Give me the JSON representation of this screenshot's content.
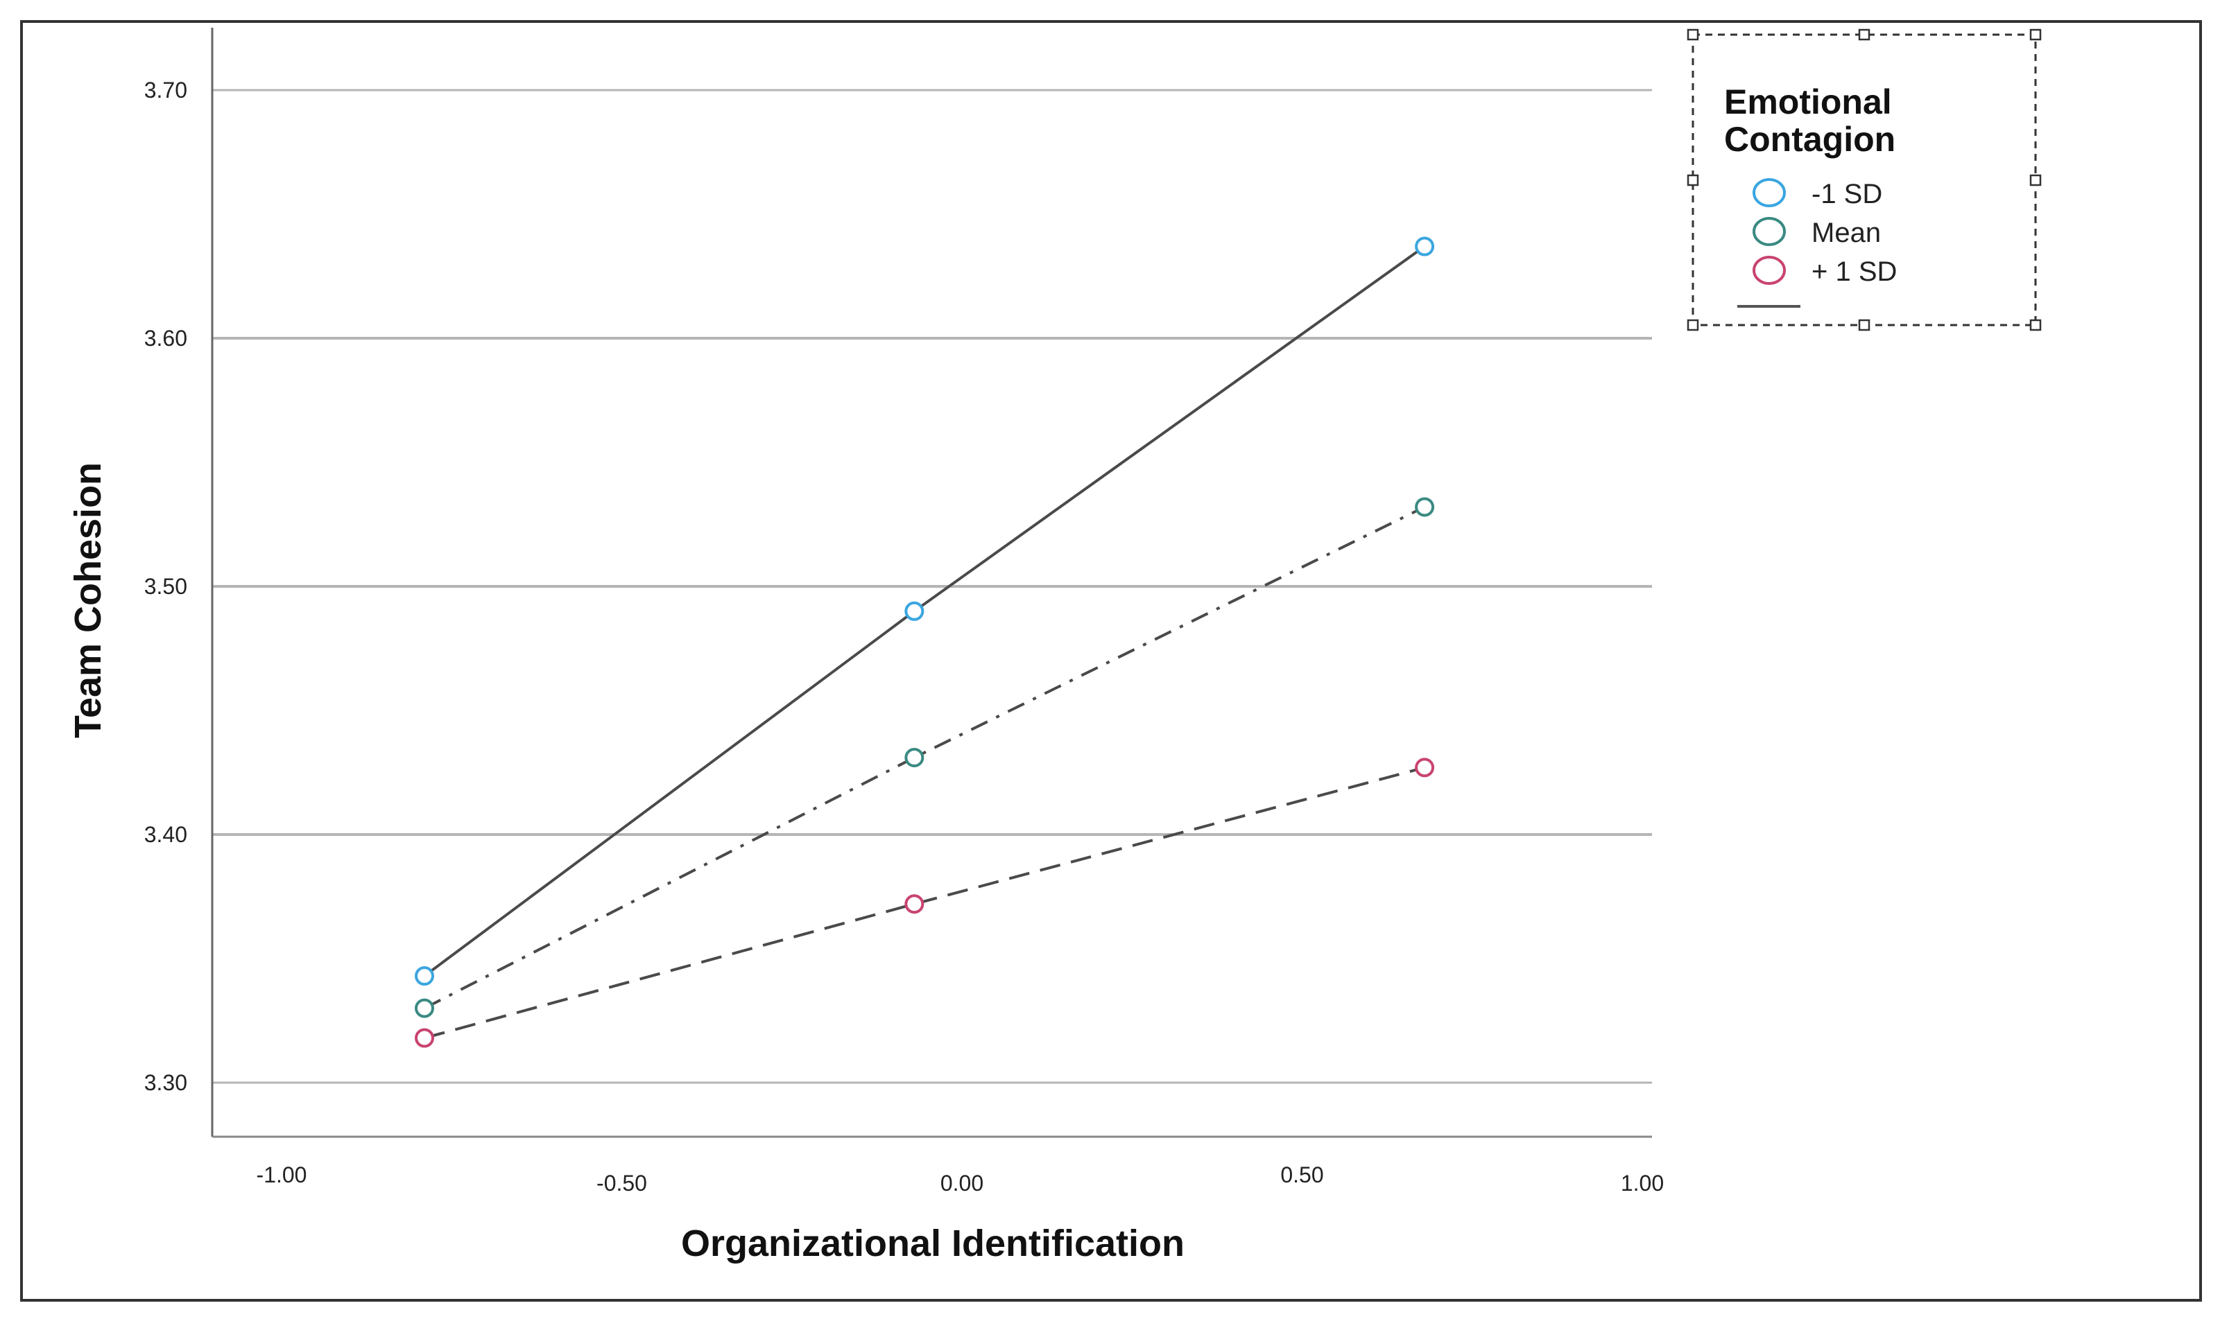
{
  "chart_data": {
    "type": "line",
    "title": "",
    "xlabel": "Organizational Identification",
    "ylabel": "Team Cohesion",
    "xlim": [
      -1.0,
      1.0
    ],
    "ylim": [
      3.3,
      3.7
    ],
    "x_ticks": [
      "-1.00",
      "-0.50",
      "0.00",
      "0.50",
      "1.00"
    ],
    "y_ticks": [
      "3.30",
      "3.40",
      "3.50",
      "3.60",
      "3.70"
    ],
    "grid": "horizontal",
    "legend": {
      "title": "Emotional Contagion",
      "title_lines": [
        "Emotional",
        "Contagion"
      ],
      "placement": "top-right"
    },
    "x": [
      -0.79,
      -0.07,
      0.68
    ],
    "series": [
      {
        "name": "-1 SD",
        "values": [
          3.343,
          3.49,
          3.637
        ],
        "marker_color": "#3aa6e0",
        "line_style": "solid"
      },
      {
        "name": "Mean",
        "values": [
          3.33,
          3.431,
          3.532
        ],
        "marker_color": "#3a8a82",
        "line_style": "dash-dot"
      },
      {
        "name": "+ 1 SD",
        "values": [
          3.318,
          3.372,
          3.427
        ],
        "marker_color": "#c8446e",
        "line_style": "dashed"
      }
    ]
  }
}
